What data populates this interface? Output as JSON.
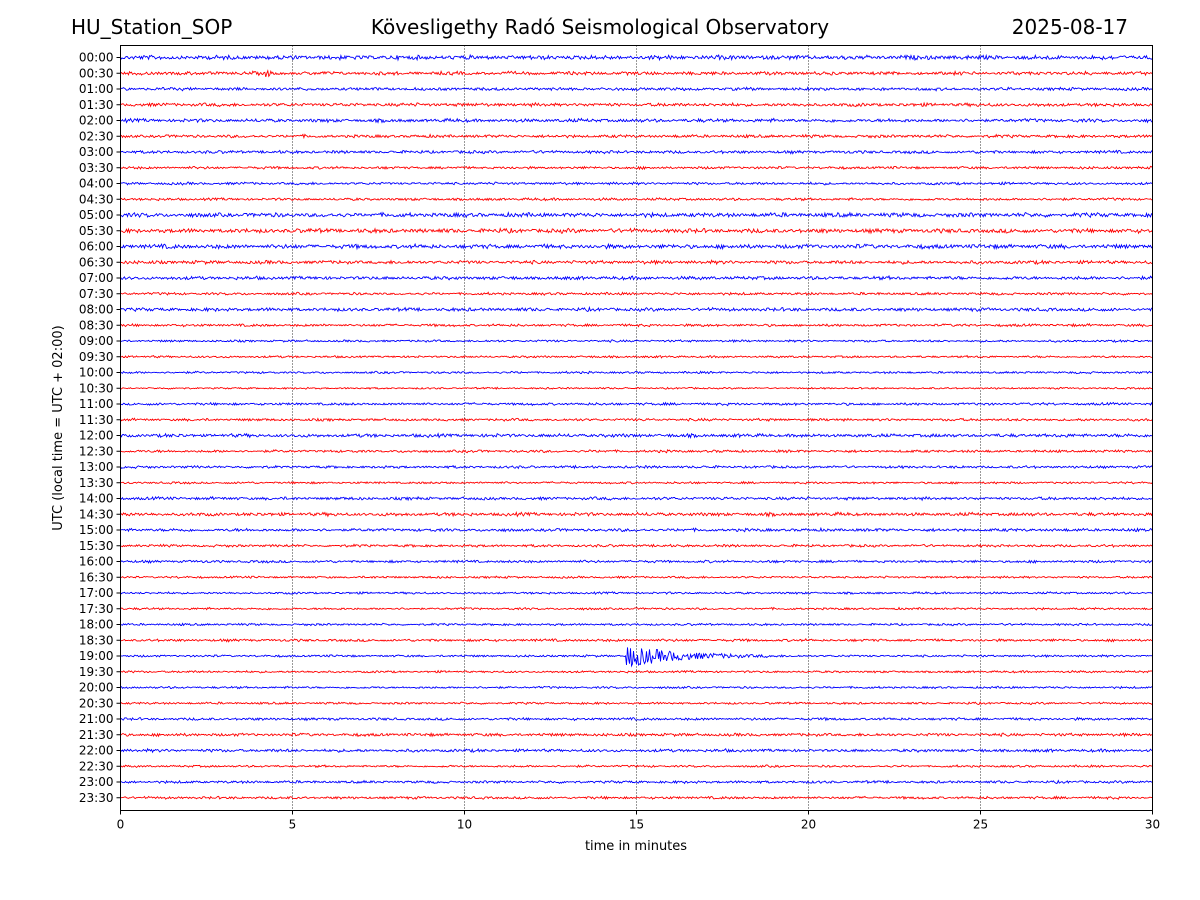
{
  "header": {
    "station": "HU_Station_SOP",
    "observatory": "Köveslige­thy Radó Seismological Observatory",
    "date": "2025-08-17"
  },
  "chart_data": {
    "type": "line",
    "title": "Köveslige­thy Radó Seismological Observatory",
    "xlabel": "time in minutes",
    "ylabel": "UTC (local time = UTC + 02:00)",
    "xlim": [
      0,
      30
    ],
    "xticks": [
      0,
      5,
      10,
      15,
      20,
      25,
      30
    ],
    "grid": "vertical dotted at x ticks",
    "trace_colors": [
      "#0000ff",
      "#ff0000"
    ],
    "rows": [
      "00:00",
      "00:30",
      "01:00",
      "01:30",
      "02:00",
      "02:30",
      "03:00",
      "03:30",
      "04:00",
      "04:30",
      "05:00",
      "05:30",
      "06:00",
      "06:30",
      "07:00",
      "07:30",
      "08:00",
      "08:30",
      "09:00",
      "09:30",
      "10:00",
      "10:30",
      "11:00",
      "11:30",
      "12:00",
      "12:30",
      "13:00",
      "13:30",
      "14:00",
      "14:30",
      "15:00",
      "15:30",
      "16:00",
      "16:30",
      "17:00",
      "17:30",
      "18:00",
      "18:30",
      "19:00",
      "19:30",
      "20:00",
      "20:30",
      "21:00",
      "21:30",
      "22:00",
      "22:30",
      "23:00",
      "23:30"
    ],
    "row_amplitude": [
      1.0,
      0.8,
      0.7,
      0.8,
      0.8,
      0.7,
      0.7,
      0.6,
      0.6,
      0.6,
      1.0,
      1.0,
      1.0,
      0.8,
      0.8,
      0.6,
      0.8,
      0.6,
      0.5,
      0.5,
      0.5,
      0.4,
      0.6,
      0.6,
      0.8,
      0.6,
      0.6,
      0.5,
      0.7,
      0.8,
      0.7,
      0.6,
      0.6,
      0.5,
      0.5,
      0.5,
      0.5,
      0.6,
      0.5,
      0.5,
      0.5,
      0.5,
      0.6,
      0.7,
      0.7,
      0.5,
      0.6,
      0.6
    ],
    "events": [
      {
        "row": "19:00",
        "start_min": 14.7,
        "peak_amplitude": 5.0,
        "coda_end_min": 19.0
      },
      {
        "row": "00:30",
        "start_min": 4.2,
        "peak_amplitude": 2.0,
        "coda_end_min": 4.5
      }
    ]
  }
}
